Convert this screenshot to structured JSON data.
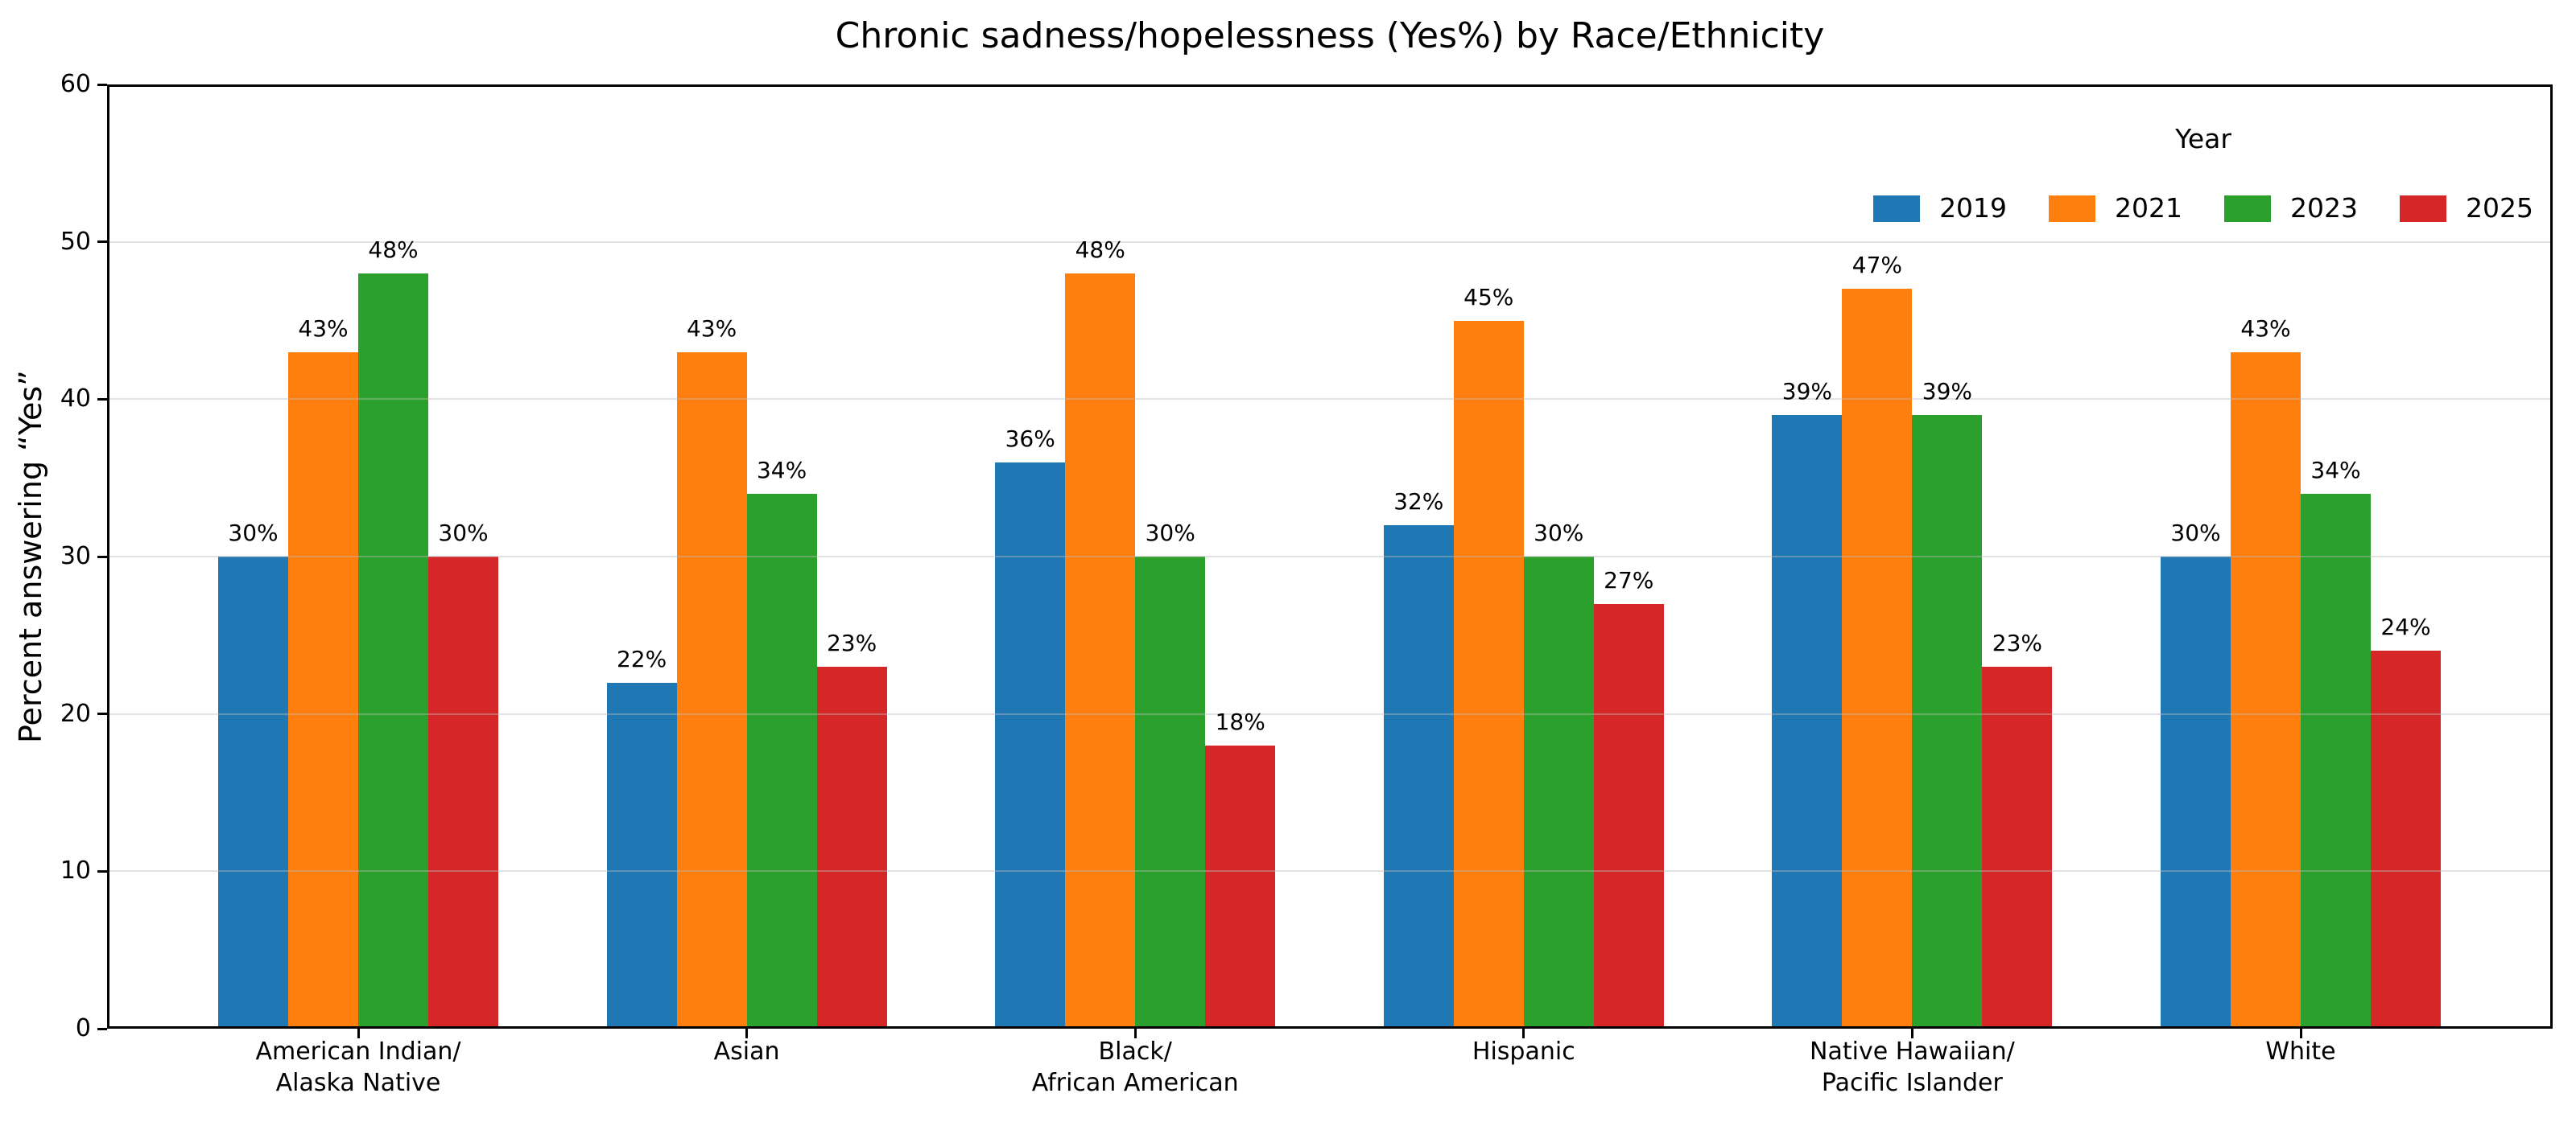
{
  "chart_data": {
    "type": "bar",
    "title": "Chronic sadness/hopelessness (Yes%) by Race/Ethnicity",
    "xlabel": "",
    "ylabel": "Percent answering “Yes”",
    "ylim": [
      0,
      60
    ],
    "yticks": [
      0,
      10,
      20,
      30,
      40,
      50,
      60
    ],
    "grid": true,
    "value_suffix": "%",
    "legend": {
      "title": "Year",
      "position": "upper right"
    },
    "categories": [
      [
        "American Indian/",
        "Alaska Native"
      ],
      [
        "Asian"
      ],
      [
        "Black/",
        "African American"
      ],
      [
        "Hispanic"
      ],
      [
        "Native Hawaiian/",
        "Pacific Islander"
      ],
      [
        "White"
      ]
    ],
    "series": [
      {
        "name": "2019",
        "color": "#1f77b4",
        "values": [
          30,
          22,
          36,
          32,
          39,
          30
        ]
      },
      {
        "name": "2021",
        "color": "#ff7f0e",
        "values": [
          43,
          43,
          48,
          45,
          47,
          43
        ]
      },
      {
        "name": "2023",
        "color": "#2ca02c",
        "values": [
          48,
          34,
          30,
          30,
          39,
          34
        ]
      },
      {
        "name": "2025",
        "color": "#d62728",
        "values": [
          30,
          23,
          18,
          27,
          23,
          24
        ]
      }
    ]
  }
}
